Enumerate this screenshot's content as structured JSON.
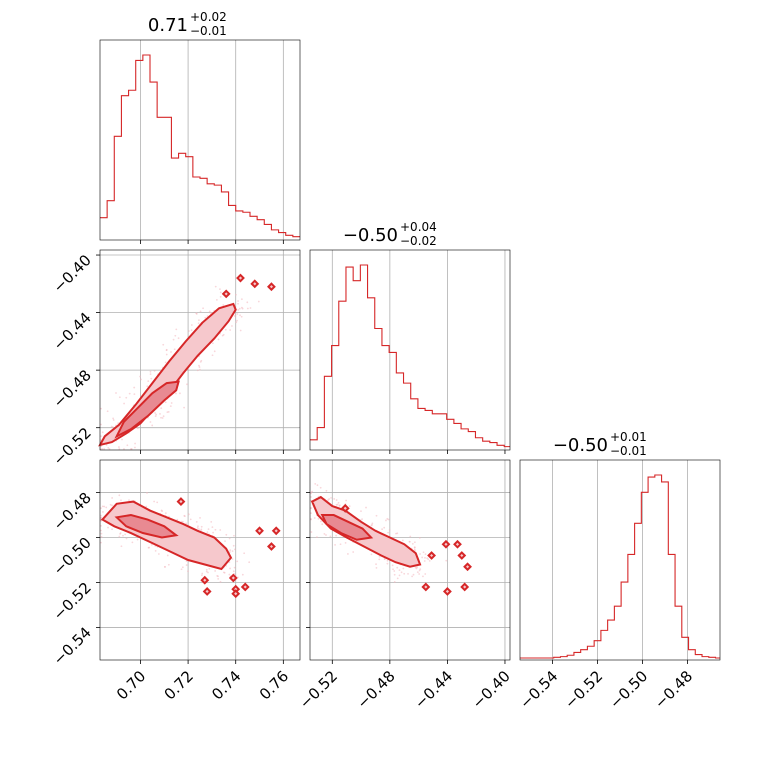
{
  "chart_data": {
    "type": "corner",
    "color": "#d62728",
    "grid": true,
    "parameters": [
      {
        "title_value": "0.71",
        "title_plus": "+0.02",
        "title_minus": "−0.01",
        "range": [
          0.683,
          0.767
        ]
      },
      {
        "title_value": "−0.50",
        "title_plus": "+0.04",
        "title_minus": "−0.02",
        "range": [
          -0.5355,
          -0.3965
        ]
      },
      {
        "title_value": "−0.50",
        "title_plus": "+0.01",
        "title_minus": "−0.01",
        "range": [
          -0.5545,
          -0.4655
        ]
      }
    ],
    "ticks": {
      "p0": [
        {
          "v": 0.7,
          "label": "0.70"
        },
        {
          "v": 0.72,
          "label": "0.72"
        },
        {
          "v": 0.74,
          "label": "0.74"
        },
        {
          "v": 0.76,
          "label": "0.76"
        }
      ],
      "p1": [
        {
          "v": -0.52,
          "label": "−0.52"
        },
        {
          "v": -0.48,
          "label": "−0.48"
        },
        {
          "v": -0.44,
          "label": "−0.44"
        },
        {
          "v": -0.4,
          "label": "−0.40"
        }
      ],
      "p2": [
        {
          "v": -0.54,
          "label": "−0.54"
        },
        {
          "v": -0.52,
          "label": "−0.52"
        },
        {
          "v": -0.5,
          "label": "−0.50"
        },
        {
          "v": -0.48,
          "label": "−0.48"
        }
      ]
    },
    "histograms": {
      "p0": {
        "bin_edges": [
          0.683,
          0.686,
          0.689,
          0.692,
          0.695,
          0.698,
          0.701,
          0.704,
          0.707,
          0.71,
          0.713,
          0.716,
          0.719,
          0.722,
          0.725,
          0.728,
          0.731,
          0.734,
          0.737,
          0.74,
          0.743,
          0.746,
          0.749,
          0.752,
          0.755,
          0.758,
          0.761,
          0.764,
          0.767
        ],
        "counts": [
          30,
          55,
          150,
          210,
          218,
          262,
          270,
          230,
          178,
          178,
          118,
          125,
          120,
          90,
          88,
          80,
          78,
          68,
          48,
          40,
          38,
          32,
          27,
          20,
          12,
          8,
          4,
          2
        ]
      },
      "p1": {
        "bin_edges": [
          -0.5355,
          -0.5305,
          -0.5255,
          -0.5205,
          -0.5155,
          -0.5105,
          -0.5055,
          -0.5005,
          -0.4955,
          -0.4905,
          -0.4855,
          -0.4805,
          -0.4755,
          -0.4705,
          -0.4655,
          -0.4605,
          -0.4555,
          -0.4505,
          -0.4455,
          -0.4405,
          -0.4355,
          -0.4305,
          -0.4255,
          -0.4205,
          -0.4155,
          -0.4105,
          -0.4055,
          -0.4005,
          -0.3965
        ],
        "counts": [
          12,
          30,
          105,
          150,
          215,
          265,
          245,
          268,
          220,
          175,
          150,
          140,
          110,
          95,
          72,
          58,
          55,
          50,
          50,
          42,
          36,
          28,
          24,
          15,
          10,
          8,
          4,
          2
        ]
      },
      "p2": {
        "bin_edges": [
          -0.5545,
          -0.5515,
          -0.5485,
          -0.5455,
          -0.5425,
          -0.5395,
          -0.5365,
          -0.5335,
          -0.5305,
          -0.5275,
          -0.5245,
          -0.5215,
          -0.5185,
          -0.5155,
          -0.5125,
          -0.5095,
          -0.5065,
          -0.5035,
          -0.5005,
          -0.4975,
          -0.4945,
          -0.4915,
          -0.4885,
          -0.4855,
          -0.4825,
          -0.4795,
          -0.4765,
          -0.4735,
          -0.4705,
          -0.4675,
          -0.4655
        ],
        "counts": [
          0,
          0,
          0,
          0,
          0,
          1,
          2,
          4,
          8,
          12,
          17,
          25,
          40,
          55,
          75,
          110,
          150,
          195,
          240,
          262,
          265,
          255,
          150,
          75,
          30,
          12,
          5,
          2,
          1,
          0
        ]
      }
    },
    "contours": {
      "p0_vs_p1": {
        "outer": [
          [
            0.683,
            -0.532
          ],
          [
            0.688,
            -0.53
          ],
          [
            0.694,
            -0.524
          ],
          [
            0.7,
            -0.517
          ],
          [
            0.706,
            -0.506
          ],
          [
            0.712,
            -0.495
          ],
          [
            0.718,
            -0.482
          ],
          [
            0.724,
            -0.47
          ],
          [
            0.731,
            -0.458
          ],
          [
            0.737,
            -0.446
          ],
          [
            0.74,
            -0.438
          ],
          [
            0.739,
            -0.434
          ],
          [
            0.733,
            -0.437
          ],
          [
            0.726,
            -0.447
          ],
          [
            0.719,
            -0.46
          ],
          [
            0.712,
            -0.474
          ],
          [
            0.705,
            -0.489
          ],
          [
            0.698,
            -0.504
          ],
          [
            0.691,
            -0.518
          ],
          [
            0.685,
            -0.526
          ]
        ],
        "inner": [
          [
            0.69,
            -0.526
          ],
          [
            0.696,
            -0.521
          ],
          [
            0.703,
            -0.512
          ],
          [
            0.71,
            -0.501
          ],
          [
            0.715,
            -0.494
          ],
          [
            0.716,
            -0.488
          ],
          [
            0.711,
            -0.489
          ],
          [
            0.705,
            -0.496
          ],
          [
            0.699,
            -0.506
          ],
          [
            0.693,
            -0.516
          ]
        ],
        "islands": [
          [
            0.736,
            -0.427
          ],
          [
            0.742,
            -0.416
          ],
          [
            0.748,
            -0.42
          ],
          [
            0.755,
            -0.422
          ]
        ]
      },
      "p0_vs_p2": {
        "outer": [
          [
            0.684,
            -0.492
          ],
          [
            0.69,
            -0.485
          ],
          [
            0.697,
            -0.484
          ],
          [
            0.704,
            -0.488
          ],
          [
            0.711,
            -0.491
          ],
          [
            0.718,
            -0.494
          ],
          [
            0.724,
            -0.497
          ],
          [
            0.731,
            -0.5
          ],
          [
            0.736,
            -0.505
          ],
          [
            0.738,
            -0.509
          ],
          [
            0.734,
            -0.514
          ],
          [
            0.727,
            -0.512
          ],
          [
            0.72,
            -0.51
          ],
          [
            0.712,
            -0.506
          ],
          [
            0.704,
            -0.502
          ],
          [
            0.696,
            -0.498
          ],
          [
            0.689,
            -0.495
          ]
        ],
        "inner": [
          [
            0.69,
            -0.491
          ],
          [
            0.696,
            -0.49
          ],
          [
            0.703,
            -0.492
          ],
          [
            0.71,
            -0.495
          ],
          [
            0.715,
            -0.499
          ],
          [
            0.709,
            -0.5
          ],
          [
            0.701,
            -0.498
          ],
          [
            0.694,
            -0.495
          ]
        ],
        "islands": [
          [
            0.717,
            -0.484
          ],
          [
            0.727,
            -0.519
          ],
          [
            0.739,
            -0.518
          ],
          [
            0.74,
            -0.523
          ],
          [
            0.744,
            -0.522
          ],
          [
            0.75,
            -0.497
          ],
          [
            0.755,
            -0.504
          ],
          [
            0.757,
            -0.497
          ],
          [
            0.728,
            -0.524
          ],
          [
            0.74,
            -0.525
          ]
        ]
      },
      "p1_vs_p2": {
        "outer": [
          [
            -0.534,
            -0.484
          ],
          [
            -0.528,
            -0.482
          ],
          [
            -0.52,
            -0.486
          ],
          [
            -0.511,
            -0.488
          ],
          [
            -0.5,
            -0.493
          ],
          [
            -0.49,
            -0.497
          ],
          [
            -0.48,
            -0.5
          ],
          [
            -0.47,
            -0.503
          ],
          [
            -0.462,
            -0.507
          ],
          [
            -0.459,
            -0.512
          ],
          [
            -0.466,
            -0.513
          ],
          [
            -0.476,
            -0.511
          ],
          [
            -0.486,
            -0.508
          ],
          [
            -0.498,
            -0.504
          ],
          [
            -0.51,
            -0.5
          ],
          [
            -0.521,
            -0.496
          ],
          [
            -0.53,
            -0.49
          ]
        ],
        "inner": [
          [
            -0.527,
            -0.49
          ],
          [
            -0.519,
            -0.49
          ],
          [
            -0.509,
            -0.493
          ],
          [
            -0.499,
            -0.496
          ],
          [
            -0.493,
            -0.5
          ],
          [
            -0.503,
            -0.501
          ],
          [
            -0.514,
            -0.498
          ],
          [
            -0.524,
            -0.494
          ]
        ],
        "islands": [
          [
            -0.511,
            -0.487
          ],
          [
            -0.451,
            -0.508
          ],
          [
            -0.441,
            -0.503
          ],
          [
            -0.433,
            -0.503
          ],
          [
            -0.43,
            -0.508
          ],
          [
            -0.455,
            -0.522
          ],
          [
            -0.44,
            -0.524
          ],
          [
            -0.428,
            -0.522
          ],
          [
            -0.426,
            -0.513
          ]
        ]
      }
    }
  }
}
